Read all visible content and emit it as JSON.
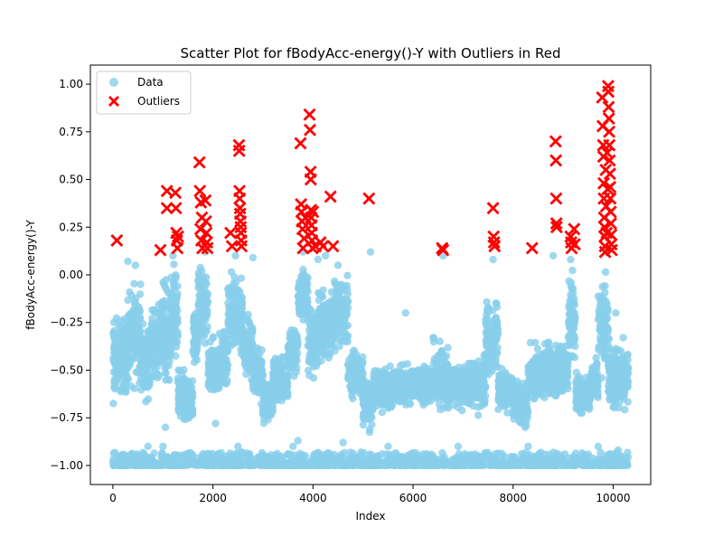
{
  "chart_data": {
    "type": "scatter",
    "title": "Scatter Plot for fBodyAcc-energy()-Y with Outliers in Red",
    "xlabel": "Index",
    "ylabel": "fBodyAcc-energy()-Y",
    "xlim": [
      -450,
      10750
    ],
    "ylim": [
      -1.1,
      1.1
    ],
    "x_ticks": [
      0,
      2000,
      4000,
      6000,
      8000,
      10000
    ],
    "y_ticks": [
      -1.0,
      -0.75,
      -0.5,
      -0.25,
      0.0,
      0.25,
      0.5,
      0.75,
      1.0
    ],
    "x_tick_labels": [
      "0",
      "2000",
      "4000",
      "6000",
      "8000",
      "10000"
    ],
    "y_tick_labels": [
      "−1.00",
      "−0.75",
      "−0.50",
      "−0.25",
      "0.00",
      "0.25",
      "0.50",
      "0.75",
      "1.00"
    ],
    "grid": false,
    "legend": {
      "placement": "upper-left",
      "entries": [
        {
          "label": "Data",
          "marker": "circle",
          "color": "#87CEEB"
        },
        {
          "label": "Outliers",
          "marker": "x",
          "color": "#FF0000"
        }
      ]
    },
    "colors": {
      "data": "#87CEEB",
      "outliers": "#FF0000"
    },
    "series": [
      {
        "name": "Data",
        "bands": [
          {
            "x": [
              0,
              100
            ],
            "y": [
              -0.75,
              -0.15
            ]
          },
          {
            "x": [
              100,
              300
            ],
            "y": [
              -0.7,
              -0.15
            ]
          },
          {
            "x": [
              300,
              550
            ],
            "y": [
              -0.65,
              0.02
            ]
          },
          {
            "x": [
              550,
              750
            ],
            "y": [
              -0.7,
              -0.2
            ]
          },
          {
            "x": [
              750,
              950
            ],
            "y": [
              -0.6,
              -0.1
            ]
          },
          {
            "x": [
              950,
              1150
            ],
            "y": [
              -0.65,
              0.05
            ]
          },
          {
            "x": [
              1150,
              1300
            ],
            "y": [
              -0.55,
              0.1
            ]
          },
          {
            "x": [
              1300,
              1450
            ],
            "y": [
              -0.85,
              -0.45
            ]
          },
          {
            "x": [
              1450,
              1600
            ],
            "y": [
              -0.85,
              -0.5
            ]
          },
          {
            "x": [
              1600,
              1700
            ],
            "y": [
              -0.55,
              -0.1
            ]
          },
          {
            "x": [
              1700,
              1900
            ],
            "y": [
              -0.45,
              0.12
            ]
          },
          {
            "x": [
              1900,
              2100
            ],
            "y": [
              -0.7,
              -0.3
            ]
          },
          {
            "x": [
              2100,
              2300
            ],
            "y": [
              -0.65,
              -0.25
            ]
          },
          {
            "x": [
              2300,
              2600
            ],
            "y": [
              -0.5,
              0.1
            ]
          },
          {
            "x": [
              2600,
              2800
            ],
            "y": [
              -0.6,
              -0.15
            ]
          },
          {
            "x": [
              2800,
              3000
            ],
            "y": [
              -0.7,
              -0.35
            ]
          },
          {
            "x": [
              3000,
              3200
            ],
            "y": [
              -0.82,
              -0.5
            ]
          },
          {
            "x": [
              3200,
              3500
            ],
            "y": [
              -0.7,
              -0.4
            ]
          },
          {
            "x": [
              3500,
              3700
            ],
            "y": [
              -0.55,
              -0.25
            ]
          },
          {
            "x": [
              3700,
              3900
            ],
            "y": [
              -0.3,
              0.1
            ]
          },
          {
            "x": [
              3900,
              4100
            ],
            "y": [
              -0.6,
              -0.1
            ]
          },
          {
            "x": [
              4100,
              4400
            ],
            "y": [
              -0.5,
              -0.05
            ]
          },
          {
            "x": [
              4400,
              4700
            ],
            "y": [
              -0.45,
              0.05
            ]
          },
          {
            "x": [
              4700,
              5000
            ],
            "y": [
              -0.7,
              -0.35
            ]
          },
          {
            "x": [
              5000,
              5200
            ],
            "y": [
              -0.85,
              -0.5
            ]
          },
          {
            "x": [
              5200,
              5600
            ],
            "y": [
              -0.75,
              -0.45
            ]
          },
          {
            "x": [
              5600,
              6000
            ],
            "y": [
              -0.72,
              -0.45
            ]
          },
          {
            "x": [
              6000,
              6400
            ],
            "y": [
              -0.7,
              -0.45
            ]
          },
          {
            "x": [
              6400,
              6700
            ],
            "y": [
              -0.75,
              -0.3
            ]
          },
          {
            "x": [
              6700,
              7100
            ],
            "y": [
              -0.72,
              -0.45
            ]
          },
          {
            "x": [
              7100,
              7450
            ],
            "y": [
              -0.75,
              -0.4
            ]
          },
          {
            "x": [
              7450,
              7700
            ],
            "y": [
              -0.6,
              -0.1
            ]
          },
          {
            "x": [
              7700,
              8000
            ],
            "y": [
              -0.75,
              -0.45
            ]
          },
          {
            "x": [
              8000,
              8300
            ],
            "y": [
              -0.85,
              -0.5
            ]
          },
          {
            "x": [
              8300,
              8600
            ],
            "y": [
              -0.7,
              -0.35
            ]
          },
          {
            "x": [
              8600,
              8900
            ],
            "y": [
              -0.7,
              -0.3
            ]
          },
          {
            "x": [
              8900,
              9100
            ],
            "y": [
              -0.65,
              -0.3
            ]
          },
          {
            "x": [
              9100,
              9250
            ],
            "y": [
              -0.55,
              0.08
            ]
          },
          {
            "x": [
              9250,
              9550
            ],
            "y": [
              -0.75,
              -0.5
            ]
          },
          {
            "x": [
              9550,
              9700
            ],
            "y": [
              -0.7,
              -0.4
            ]
          },
          {
            "x": [
              9700,
              9900
            ],
            "y": [
              -0.6,
              0.05
            ]
          },
          {
            "x": [
              9900,
              10000
            ],
            "y": [
              -0.8,
              -0.3
            ]
          },
          {
            "x": [
              10000,
              10300
            ],
            "y": [
              -0.75,
              -0.35
            ]
          }
        ],
        "baseline": {
          "x": [
            0,
            10300
          ],
          "y": [
            -1.0,
            -0.93
          ]
        },
        "points": [
          {
            "x": 300,
            "y": 0.07
          },
          {
            "x": 450,
            "y": 0.05
          },
          {
            "x": 550,
            "y": -0.05
          },
          {
            "x": 1200,
            "y": 0.1
          },
          {
            "x": 1850,
            "y": 0.12
          },
          {
            "x": 2450,
            "y": 0.1
          },
          {
            "x": 2800,
            "y": 0.09
          },
          {
            "x": 3800,
            "y": 0.12
          },
          {
            "x": 4100,
            "y": 0.08
          },
          {
            "x": 4250,
            "y": 0.1
          },
          {
            "x": 4500,
            "y": 0.05
          },
          {
            "x": 5150,
            "y": 0.12
          },
          {
            "x": 5850,
            "y": -0.2
          },
          {
            "x": 6600,
            "y": 0.1
          },
          {
            "x": 7600,
            "y": 0.08
          },
          {
            "x": 8800,
            "y": 0.1
          },
          {
            "x": 9150,
            "y": 0.08
          },
          {
            "x": 9850,
            "y": 0.12
          },
          {
            "x": 10050,
            "y": -0.2
          },
          {
            "x": 10200,
            "y": -0.33
          },
          {
            "x": 700,
            "y": -0.9
          },
          {
            "x": 1000,
            "y": -0.9
          },
          {
            "x": 2500,
            "y": -0.9
          },
          {
            "x": 3600,
            "y": -0.9
          },
          {
            "x": 4600,
            "y": -0.88
          },
          {
            "x": 5500,
            "y": -0.9
          },
          {
            "x": 6900,
            "y": -0.9
          },
          {
            "x": 8300,
            "y": -0.9
          },
          {
            "x": 9700,
            "y": -0.9
          },
          {
            "x": 10100,
            "y": -0.92
          },
          {
            "x": 3700,
            "y": -0.87
          },
          {
            "x": 1050,
            "y": -0.8
          },
          {
            "x": 2050,
            "y": -0.78
          }
        ]
      },
      {
        "name": "Outliers",
        "points": [
          {
            "x": 80,
            "y": 0.18
          },
          {
            "x": 950,
            "y": 0.13
          },
          {
            "x": 1080,
            "y": 0.44
          },
          {
            "x": 1080,
            "y": 0.35
          },
          {
            "x": 1250,
            "y": 0.43
          },
          {
            "x": 1260,
            "y": 0.35
          },
          {
            "x": 1270,
            "y": 0.22
          },
          {
            "x": 1280,
            "y": 0.18
          },
          {
            "x": 1290,
            "y": 0.14
          },
          {
            "x": 1300,
            "y": 0.2
          },
          {
            "x": 1730,
            "y": 0.59
          },
          {
            "x": 1740,
            "y": 0.44
          },
          {
            "x": 1760,
            "y": 0.38
          },
          {
            "x": 1780,
            "y": 0.3
          },
          {
            "x": 1750,
            "y": 0.24
          },
          {
            "x": 1770,
            "y": 0.18
          },
          {
            "x": 1790,
            "y": 0.14
          },
          {
            "x": 1850,
            "y": 0.39
          },
          {
            "x": 1860,
            "y": 0.28
          },
          {
            "x": 1870,
            "y": 0.22
          },
          {
            "x": 1880,
            "y": 0.17
          },
          {
            "x": 1890,
            "y": 0.14
          },
          {
            "x": 2350,
            "y": 0.22
          },
          {
            "x": 2380,
            "y": 0.15
          },
          {
            "x": 2520,
            "y": 0.68
          },
          {
            "x": 2525,
            "y": 0.65
          },
          {
            "x": 2530,
            "y": 0.44
          },
          {
            "x": 2535,
            "y": 0.4
          },
          {
            "x": 2540,
            "y": 0.35
          },
          {
            "x": 2545,
            "y": 0.32
          },
          {
            "x": 2550,
            "y": 0.28
          },
          {
            "x": 2555,
            "y": 0.25
          },
          {
            "x": 2560,
            "y": 0.22
          },
          {
            "x": 2565,
            "y": 0.18
          },
          {
            "x": 2570,
            "y": 0.15
          },
          {
            "x": 3750,
            "y": 0.69
          },
          {
            "x": 3760,
            "y": 0.37
          },
          {
            "x": 3770,
            "y": 0.33
          },
          {
            "x": 3780,
            "y": 0.28
          },
          {
            "x": 3790,
            "y": 0.24
          },
          {
            "x": 3800,
            "y": 0.14
          },
          {
            "x": 3820,
            "y": 0.19
          },
          {
            "x": 3850,
            "y": 0.3
          },
          {
            "x": 3930,
            "y": 0.84
          },
          {
            "x": 3940,
            "y": 0.76
          },
          {
            "x": 3950,
            "y": 0.54
          },
          {
            "x": 3955,
            "y": 0.5
          },
          {
            "x": 3960,
            "y": 0.34
          },
          {
            "x": 3965,
            "y": 0.3
          },
          {
            "x": 3970,
            "y": 0.26
          },
          {
            "x": 3975,
            "y": 0.22
          },
          {
            "x": 3980,
            "y": 0.18
          },
          {
            "x": 3990,
            "y": 0.14
          },
          {
            "x": 4000,
            "y": 0.33
          },
          {
            "x": 4050,
            "y": 0.15
          },
          {
            "x": 4150,
            "y": 0.17
          },
          {
            "x": 4200,
            "y": 0.15
          },
          {
            "x": 4350,
            "y": 0.41
          },
          {
            "x": 4400,
            "y": 0.15
          },
          {
            "x": 5120,
            "y": 0.4
          },
          {
            "x": 6580,
            "y": 0.14
          },
          {
            "x": 6600,
            "y": 0.13
          },
          {
            "x": 7600,
            "y": 0.35
          },
          {
            "x": 7610,
            "y": 0.2
          },
          {
            "x": 7620,
            "y": 0.17
          },
          {
            "x": 7630,
            "y": 0.15
          },
          {
            "x": 8380,
            "y": 0.14
          },
          {
            "x": 8850,
            "y": 0.7
          },
          {
            "x": 8855,
            "y": 0.6
          },
          {
            "x": 8860,
            "y": 0.4
          },
          {
            "x": 8865,
            "y": 0.27
          },
          {
            "x": 8870,
            "y": 0.25
          },
          {
            "x": 9150,
            "y": 0.2
          },
          {
            "x": 9160,
            "y": 0.17
          },
          {
            "x": 9170,
            "y": 0.14
          },
          {
            "x": 9220,
            "y": 0.24
          },
          {
            "x": 9230,
            "y": 0.16
          },
          {
            "x": 9780,
            "y": 0.93
          },
          {
            "x": 9790,
            "y": 0.78
          },
          {
            "x": 9800,
            "y": 0.68
          },
          {
            "x": 9805,
            "y": 0.62
          },
          {
            "x": 9810,
            "y": 0.48
          },
          {
            "x": 9815,
            "y": 0.4
          },
          {
            "x": 9820,
            "y": 0.3
          },
          {
            "x": 9825,
            "y": 0.25
          },
          {
            "x": 9830,
            "y": 0.2
          },
          {
            "x": 9835,
            "y": 0.15
          },
          {
            "x": 9840,
            "y": 0.12
          },
          {
            "x": 9850,
            "y": 0.55
          },
          {
            "x": 9860,
            "y": 0.36
          },
          {
            "x": 9870,
            "y": 0.22
          },
          {
            "x": 9880,
            "y": 0.64
          },
          {
            "x": 9890,
            "y": 0.45
          },
          {
            "x": 9900,
            "y": 0.99
          },
          {
            "x": 9905,
            "y": 0.96
          },
          {
            "x": 9910,
            "y": 0.88
          },
          {
            "x": 9915,
            "y": 0.82
          },
          {
            "x": 9920,
            "y": 0.75
          },
          {
            "x": 9925,
            "y": 0.68
          },
          {
            "x": 9930,
            "y": 0.6
          },
          {
            "x": 9935,
            "y": 0.53
          },
          {
            "x": 9940,
            "y": 0.46
          },
          {
            "x": 9945,
            "y": 0.4
          },
          {
            "x": 9950,
            "y": 0.33
          },
          {
            "x": 9955,
            "y": 0.27
          },
          {
            "x": 9960,
            "y": 0.21
          },
          {
            "x": 9965,
            "y": 0.16
          },
          {
            "x": 9970,
            "y": 0.13
          }
        ]
      }
    ]
  }
}
